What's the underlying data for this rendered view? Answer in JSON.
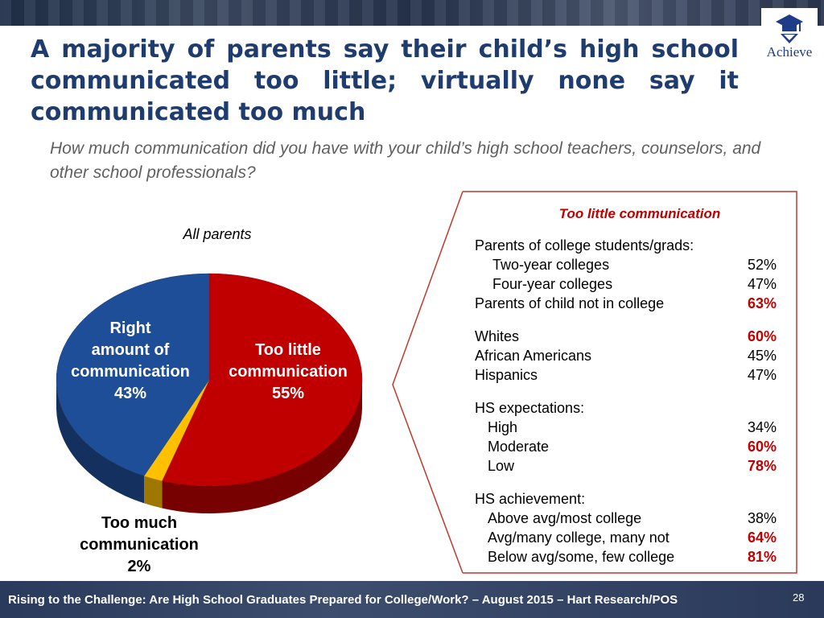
{
  "header": {
    "title": "A majority of parents say their child’s high school communicated too little; virtually none say it communicated too much",
    "logo_text": "Achieve"
  },
  "question": "How much communication did you have with your child’s high school teachers, counselors, and other school professionals?",
  "chart_data": [
    {
      "type": "pie",
      "title": "All parents",
      "slices": [
        {
          "label_lines": [
            "Too little",
            "communication",
            "55%"
          ],
          "label": "Too little communication",
          "value": 55,
          "color": "#c00000"
        },
        {
          "label_lines": [
            "Too much",
            "communication",
            "2%"
          ],
          "label": "Too much communication",
          "value": 2,
          "color": "#ffc000"
        },
        {
          "label_lines": [
            "Right",
            "amount of",
            "communication",
            "43%"
          ],
          "label": "Right amount of communication",
          "value": 43,
          "color": "#1f4e98"
        }
      ]
    },
    {
      "type": "table",
      "title": "Too little communication",
      "highlight_color": "#c00000",
      "groups": [
        {
          "rows": [
            {
              "label": "Parents of college students/grads:",
              "value": null,
              "indent": 0
            },
            {
              "label": "Two-year colleges",
              "value": "52%",
              "indent": 2,
              "highlight": false
            },
            {
              "label": "Four-year colleges",
              "value": "47%",
              "indent": 2,
              "highlight": false
            },
            {
              "label": "Parents of child not in college",
              "value": "63%",
              "indent": 0,
              "highlight": true
            }
          ]
        },
        {
          "rows": [
            {
              "label": "Whites",
              "value": "60%",
              "indent": 0,
              "highlight": true
            },
            {
              "label": "African Americans",
              "value": "45%",
              "indent": 0,
              "highlight": false
            },
            {
              "label": "Hispanics",
              "value": "47%",
              "indent": 0,
              "highlight": false
            }
          ]
        },
        {
          "rows": [
            {
              "label": "HS expectations:",
              "value": null,
              "indent": 0
            },
            {
              "label": "High",
              "value": "34%",
              "indent": 1,
              "highlight": false
            },
            {
              "label": "Moderate",
              "value": "60%",
              "indent": 1,
              "highlight": true
            },
            {
              "label": "Low",
              "value": "78%",
              "indent": 1,
              "highlight": true
            }
          ]
        },
        {
          "rows": [
            {
              "label": "HS achievement:",
              "value": null,
              "indent": 0
            },
            {
              "label": "Above avg/most college",
              "value": "38%",
              "indent": 1,
              "highlight": false
            },
            {
              "label": "Avg/many college, many not",
              "value": "64%",
              "indent": 1,
              "highlight": true
            },
            {
              "label": "Below avg/some, few college",
              "value": "81%",
              "indent": 1,
              "highlight": true
            }
          ]
        }
      ]
    }
  ],
  "footer": {
    "source": "Rising to the Challenge:  Are High School Graduates Prepared for College/Work? – August 2015 – Hart Research/POS",
    "page": "28"
  }
}
